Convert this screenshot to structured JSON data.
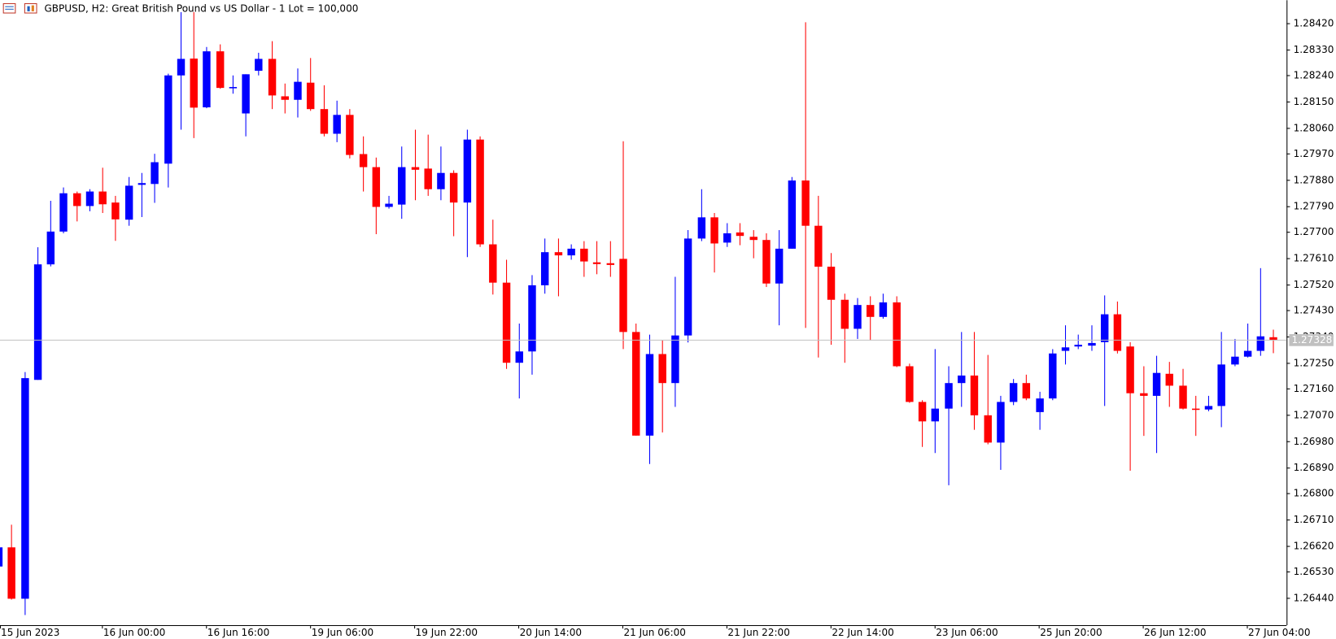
{
  "chart_data": {
    "type": "candlestick",
    "title": "GBPUSD, H2:  Great British Pound vs US Dollar - 1 Lot = 100,000",
    "categories": [
      "15 Jun 2023",
      null,
      null,
      null,
      null,
      null,
      null,
      null,
      "16 Jun 00:00",
      null,
      null,
      null,
      null,
      null,
      null,
      null,
      "16 Jun 16:00",
      null,
      null,
      null,
      null,
      null,
      null,
      null,
      "19 Jun 06:00",
      null,
      null,
      null,
      null,
      null,
      null,
      null,
      "19 Jun 22:00",
      null,
      null,
      null,
      null,
      null,
      null,
      null,
      "20 Jun 14:00",
      null,
      null,
      null,
      null,
      null,
      null,
      null,
      "21 Jun 06:00",
      null,
      null,
      null,
      null,
      null,
      null,
      null,
      "21 Jun 22:00",
      null,
      null,
      null,
      null,
      null,
      null,
      null,
      "22 Jun 14:00",
      null,
      null,
      null,
      null,
      null,
      null,
      null,
      "23 Jun 06:00",
      null,
      null,
      null,
      null,
      null,
      null,
      null,
      "25 Jun 20:00",
      null,
      null,
      null,
      null,
      null,
      null,
      null,
      "26 Jun 12:00",
      null,
      null,
      null,
      null,
      null,
      null,
      null,
      "27 Jun 04:00",
      null,
      null
    ],
    "open": [
      1.26548,
      1.26614,
      1.26437,
      1.27191,
      1.27589,
      1.27702,
      1.27834,
      1.2779,
      1.2784,
      1.27802,
      1.27743,
      1.27863,
      1.27866,
      1.27936,
      1.2824,
      1.28298,
      1.2813,
      1.28323,
      1.28197,
      1.28109,
      1.28256,
      1.28297,
      1.28168,
      1.28156,
      1.28215,
      1.28124,
      1.28039,
      1.28104,
      1.27969,
      1.27924,
      1.27787,
      1.27795,
      1.27924,
      1.27919,
      1.27848,
      1.27904,
      1.27802,
      1.28019,
      1.27658,
      1.27526,
      1.2725,
      1.27289,
      1.27517,
      1.27631,
      1.2762,
      1.27643,
      1.27596,
      1.27593,
      1.27608,
      1.27356,
      1.26999,
      1.2728,
      1.2718,
      1.27344,
      1.27678,
      1.27751,
      1.27664,
      1.27699,
      1.27684,
      1.27673,
      1.27523,
      1.27643,
      1.27878,
      1.27722,
      1.27581,
      1.27467,
      1.27367,
      1.27449,
      1.27408,
      1.27458,
      1.27238,
      1.27115,
      1.27048,
      1.27092,
      1.2718,
      1.27206,
      1.27069,
      1.26975,
      1.27115,
      1.2718,
      1.2708,
      1.27127,
      1.27291,
      1.27306,
      1.27309,
      1.27321,
      1.27417,
      1.27306,
      1.27145,
      1.27136,
      1.27212,
      1.27171,
      1.27092,
      1.27089,
      1.27101,
      1.27244,
      1.27271,
      1.27291,
      1.27338
    ],
    "high": [
      1.2663,
      1.26692,
      1.27218,
      1.27648,
      1.27808,
      1.27854,
      1.2784,
      1.27848,
      1.27922,
      1.27825,
      1.2789,
      1.27904,
      1.2797,
      1.28246,
      1.28458,
      1.28458,
      1.28338,
      1.28347,
      1.2824,
      1.28244,
      1.28318,
      1.28358,
      1.28212,
      1.28264,
      1.283,
      1.28206,
      1.28153,
      1.28124,
      1.2803,
      1.27957,
      1.27825,
      1.27995,
      1.28053,
      1.28036,
      1.27995,
      1.27913,
      1.28053,
      1.2803,
      1.27743,
      1.27605,
      1.27385,
      1.27552,
      1.27678,
      1.27678,
      1.27658,
      1.27669,
      1.27669,
      1.27669,
      1.28013,
      1.27385,
      1.27347,
      1.27327,
      1.27546,
      1.27707,
      1.27848,
      1.27766,
      1.27731,
      1.27731,
      1.27707,
      1.27696,
      1.27707,
      1.2789,
      1.28423,
      1.27825,
      1.27628,
      1.27488,
      1.27473,
      1.27479,
      1.27488,
      1.27479,
      1.27247,
      1.27121,
      1.27297,
      1.27238,
      1.27356,
      1.27356,
      1.27277,
      1.27136,
      1.27194,
      1.27209,
      1.2715,
      1.27297,
      1.27379,
      1.27347,
      1.27379,
      1.27482,
      1.27461,
      1.27321,
      1.27238,
      1.27274,
      1.27253,
      1.27229,
      1.27136,
      1.27136,
      1.27356,
      1.27332,
      1.27385,
      1.27576,
      1.27364
    ],
    "low": [
      1.2653,
      1.26434,
      1.26381,
      1.27191,
      1.27582,
      1.27696,
      1.27737,
      1.27772,
      1.27766,
      1.2767,
      1.27722,
      1.27752,
      1.27801,
      1.27854,
      1.28053,
      1.28024,
      1.28127,
      1.28194,
      1.28177,
      1.2803,
      1.2824,
      1.28124,
      1.28109,
      1.28095,
      1.28118,
      1.2803,
      1.2801,
      1.27954,
      1.2784,
      1.27693,
      1.27781,
      1.27746,
      1.2781,
      1.27825,
      1.2781,
      1.27686,
      1.27614,
      1.27649,
      1.27485,
      1.27229,
      1.27127,
      1.27209,
      1.27488,
      1.27479,
      1.27605,
      1.27546,
      1.27555,
      1.27546,
      1.27297,
      1.26999,
      1.26901,
      1.2701,
      1.27098,
      1.2732,
      1.27669,
      1.27561,
      1.27649,
      1.27655,
      1.2761,
      1.27511,
      1.27379,
      1.27643,
      1.2737,
      1.27268,
      1.27312,
      1.2725,
      1.27332,
      1.27327,
      1.27402,
      1.27235,
      1.27112,
      1.2696,
      1.26939,
      1.26828,
      1.27098,
      1.27019,
      1.26969,
      1.26881,
      1.27104,
      1.27121,
      1.27019,
      1.27121,
      1.27244,
      1.27297,
      1.27291,
      1.27101,
      1.27282,
      1.26878,
      1.26998,
      1.26939,
      1.27098,
      1.27089,
      1.26998,
      1.27083,
      1.27028,
      1.27238,
      1.27268,
      1.27274,
      1.27283
    ],
    "close": [
      1.26614,
      1.26437,
      1.27197,
      1.27589,
      1.27702,
      1.27834,
      1.2779,
      1.2784,
      1.27796,
      1.27744,
      1.2786,
      1.27869,
      1.27941,
      1.2824,
      1.28297,
      1.28129,
      1.28323,
      1.28197,
      1.282,
      1.28244,
      1.28297,
      1.28171,
      1.28156,
      1.28218,
      1.28124,
      1.28039,
      1.28104,
      1.27966,
      1.27924,
      1.27787,
      1.27798,
      1.27924,
      1.27915,
      1.27848,
      1.27904,
      1.27802,
      1.28019,
      1.27658,
      1.27526,
      1.2725,
      1.27289,
      1.27517,
      1.27631,
      1.2762,
      1.27643,
      1.27599,
      1.2759,
      1.27587,
      1.27356,
      1.26999,
      1.2728,
      1.2718,
      1.27344,
      1.27678,
      1.27751,
      1.27661,
      1.27696,
      1.27687,
      1.27673,
      1.27523,
      1.27643,
      1.27878,
      1.27722,
      1.27581,
      1.27467,
      1.27367,
      1.27449,
      1.27408,
      1.27458,
      1.27238,
      1.27115,
      1.27048,
      1.27092,
      1.2718,
      1.27206,
      1.27069,
      1.26975,
      1.27115,
      1.2718,
      1.27127,
      1.27127,
      1.27282,
      1.27303,
      1.27312,
      1.27318,
      1.27417,
      1.27291,
      1.27145,
      1.27136,
      1.27215,
      1.27171,
      1.27092,
      1.27089,
      1.27101,
      1.27244,
      1.27271,
      1.27291,
      1.27341,
      1.27328
    ],
    "up_color": "#0000ff",
    "down_color": "#ff0000",
    "current_price": 1.27328,
    "current_price_color": "#c0c0c0",
    "ylim": [
      1.26346,
      1.28499
    ],
    "yticks": [
      {
        "value": 1.2644,
        "label": "1.26440"
      },
      {
        "value": 1.2653,
        "label": "1.26530"
      },
      {
        "value": 1.2662,
        "label": "1.26620"
      },
      {
        "value": 1.2671,
        "label": "1.26710"
      },
      {
        "value": 1.268,
        "label": "1.26800"
      },
      {
        "value": 1.2689,
        "label": "1.26890"
      },
      {
        "value": 1.2698,
        "label": "1.26980"
      },
      {
        "value": 1.2707,
        "label": "1.27070"
      },
      {
        "value": 1.2716,
        "label": "1.27160"
      },
      {
        "value": 1.2725,
        "label": "1.27250"
      },
      {
        "value": 1.2734,
        "label": "1.27340"
      },
      {
        "value": 1.2743,
        "label": "1.27430"
      },
      {
        "value": 1.2752,
        "label": "1.27520"
      },
      {
        "value": 1.2761,
        "label": "1.27610"
      },
      {
        "value": 1.277,
        "label": "1.27700"
      },
      {
        "value": 1.2779,
        "label": "1.27790"
      },
      {
        "value": 1.2788,
        "label": "1.27880"
      },
      {
        "value": 1.2797,
        "label": "1.27970"
      },
      {
        "value": 1.2806,
        "label": "1.28060"
      },
      {
        "value": 1.2815,
        "label": "1.28150"
      },
      {
        "value": 1.2824,
        "label": "1.28240"
      },
      {
        "value": 1.2833,
        "label": "1.28330"
      },
      {
        "value": 1.2842,
        "label": "1.28420"
      }
    ],
    "grid": false
  }
}
